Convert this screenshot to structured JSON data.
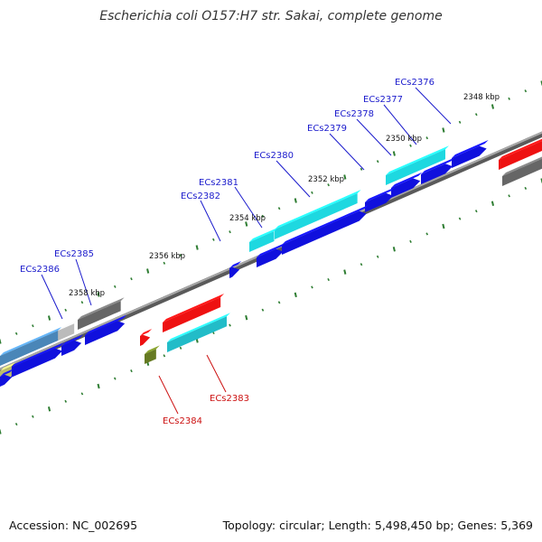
{
  "title": "Escherichia coli O157:H7 str. Sakai, complete genome",
  "footer": {
    "accession": "Accession: NC_002695",
    "summary": "Topology: circular; Length: 5,498,450 bp; Genes: 5,369"
  },
  "kbp_labels": [
    "2348 kbp",
    "2350 kbp",
    "2352 kbp",
    "2354 kbp",
    "2356 kbp",
    "2358 kbp"
  ],
  "gene_labels": {
    "forward": [
      "ECs2376",
      "ECs2377",
      "ECs2378",
      "ECs2379",
      "ECs2380",
      "ECs2381",
      "ECs2382",
      "ECs2385",
      "ECs2386"
    ],
    "reverse": [
      "ECs2383",
      "ECs2384"
    ]
  },
  "colors": {
    "forward_label": "#1a1acc",
    "reverse_label": "#cc1111",
    "backbone": "#808080",
    "ticks": "#2e7d32",
    "cds_blue": "#1010dd",
    "cds_cyan": "#1ed8e0",
    "cds_teal": "#22bcc8",
    "cds_red": "#ee1111",
    "cds_gray": "#666666",
    "cds_lightgray": "#bbbbbb",
    "cds_steel": "#4a86b8",
    "cds_olive": "#bcbc6a",
    "cds_green": "#667a22"
  }
}
